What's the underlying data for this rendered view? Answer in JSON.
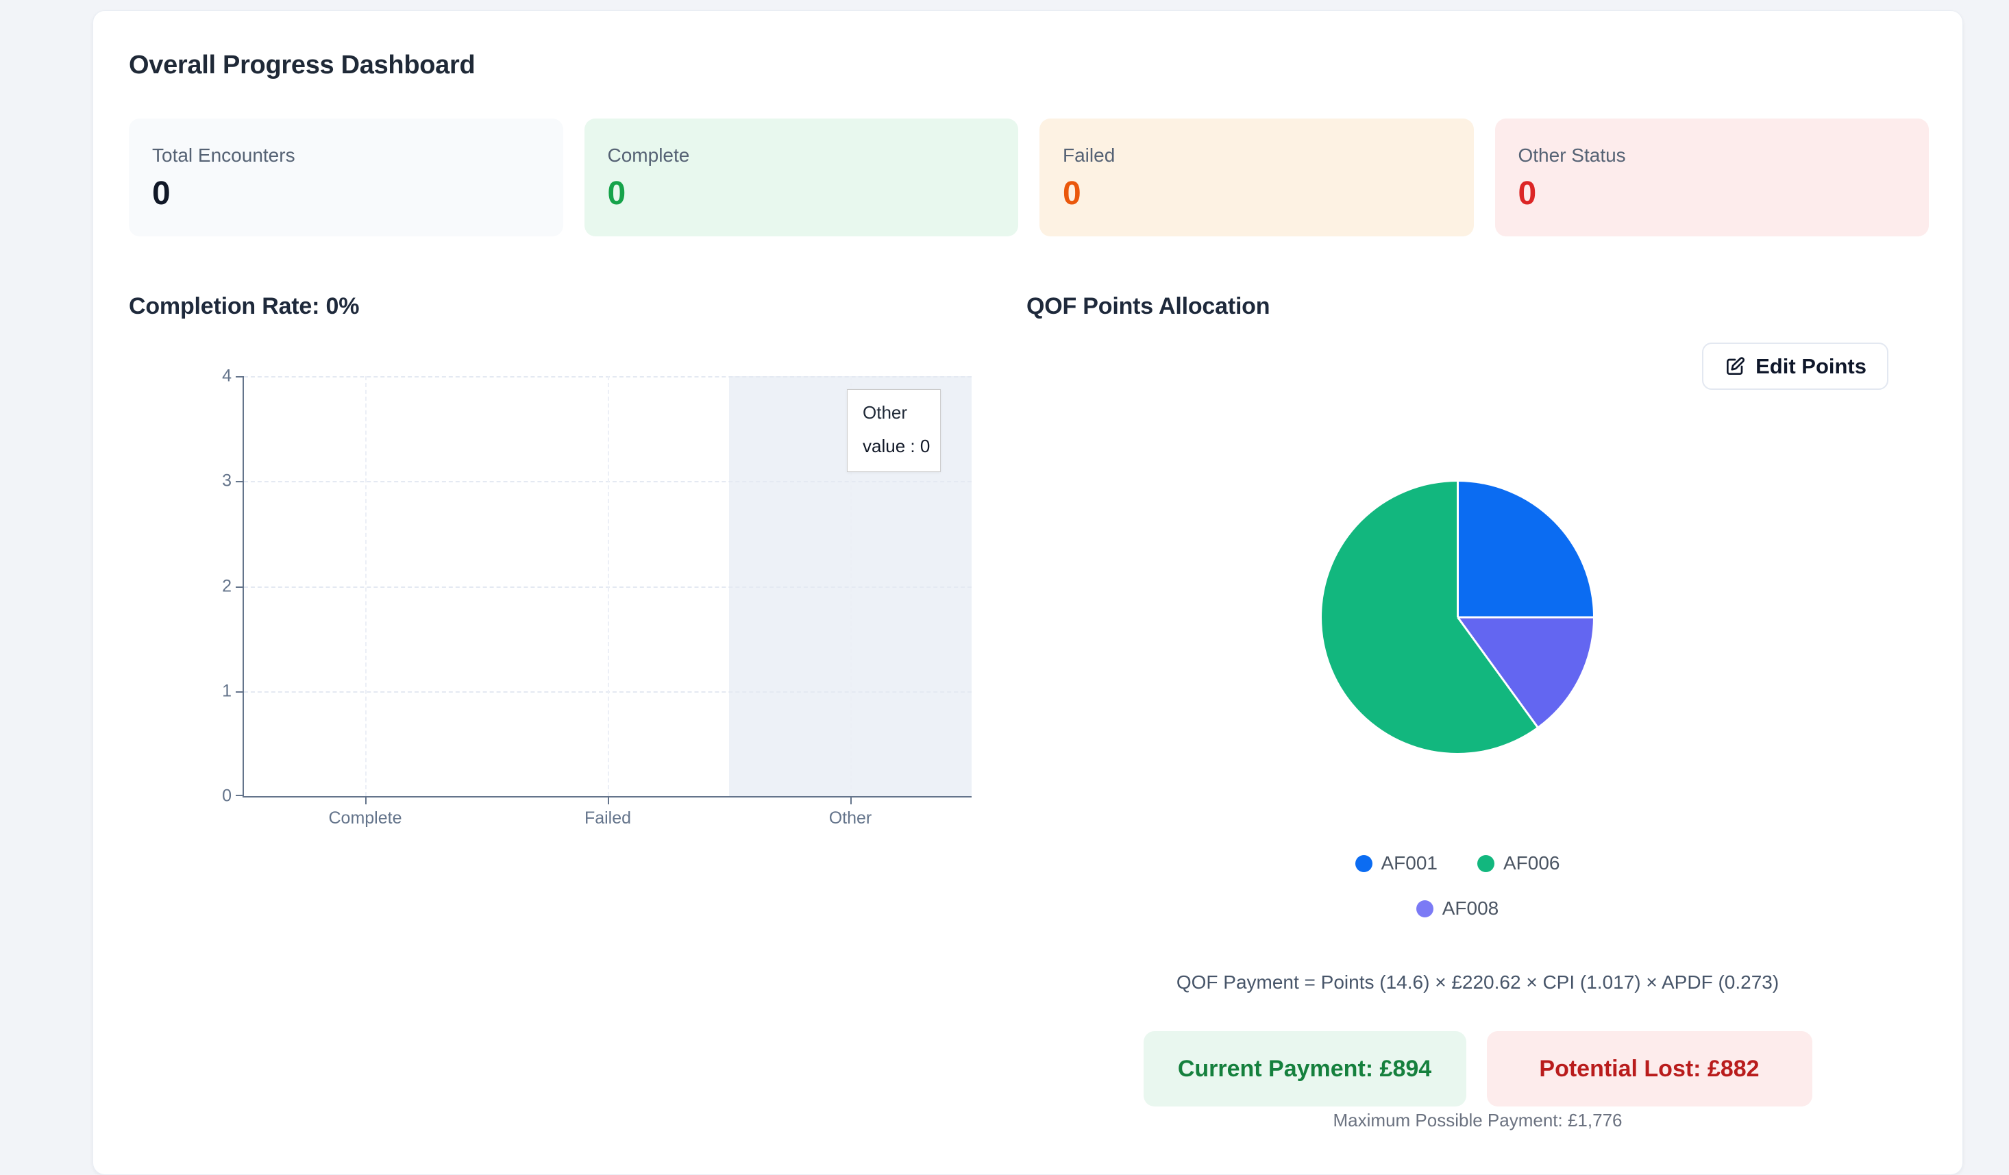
{
  "dashboard": {
    "title": "Overall Progress Dashboard",
    "stats": [
      {
        "label": "Total Encounters",
        "value": "0",
        "bg": "#f8fafc",
        "value_color": "#111827"
      },
      {
        "label": "Complete",
        "value": "0",
        "bg": "#e8f8ee",
        "value_color": "#16a34a"
      },
      {
        "label": "Failed",
        "value": "0",
        "bg": "#fdf2e3",
        "value_color": "#ea580c"
      },
      {
        "label": "Other Status",
        "value": "0",
        "bg": "#fdecec",
        "value_color": "#dc2626"
      }
    ]
  },
  "chart_data": [
    {
      "type": "bar",
      "title": "Completion Rate: 0%",
      "categories": [
        "Complete",
        "Failed",
        "Other"
      ],
      "values": [
        0,
        0,
        0
      ],
      "yticks": [
        "0",
        "1",
        "2",
        "3",
        "4"
      ],
      "ylim": [
        0,
        4
      ],
      "grid": "dashed horizontal and vertical gridlines",
      "highlighted_category": "Other",
      "tooltip": {
        "label": "Other",
        "value_line": "value : 0"
      }
    },
    {
      "type": "pie",
      "title": "QOF Points Allocation",
      "slices": [
        {
          "label": "AF001",
          "pct": 25,
          "color": "#0b6cf2"
        },
        {
          "label": "AF008",
          "pct": 15,
          "color": "#6366f1"
        },
        {
          "label": "AF006",
          "pct": 60,
          "color": "#12b77e"
        }
      ],
      "legend": [
        {
          "label": "AF001",
          "color": "#0b6cf2"
        },
        {
          "label": "AF006",
          "color": "#12b77e"
        },
        {
          "label": "AF008",
          "color": "#7b7af5"
        }
      ],
      "legend_position": "bottom"
    }
  ],
  "qof": {
    "edit_button_label": "Edit Points",
    "formula": "QOF Payment = Points (14.6) × £220.62 × CPI (1.017) × APDF (0.273)",
    "current_payment": "Current Payment: £894",
    "current_payment_colors": {
      "bg": "#e9f7ef",
      "text": "#15803d"
    },
    "potential_lost": "Potential Lost: £882",
    "potential_lost_colors": {
      "bg": "#fdecec",
      "text": "#b91c1c"
    },
    "max_payment": "Maximum Possible Payment: £1,776"
  }
}
